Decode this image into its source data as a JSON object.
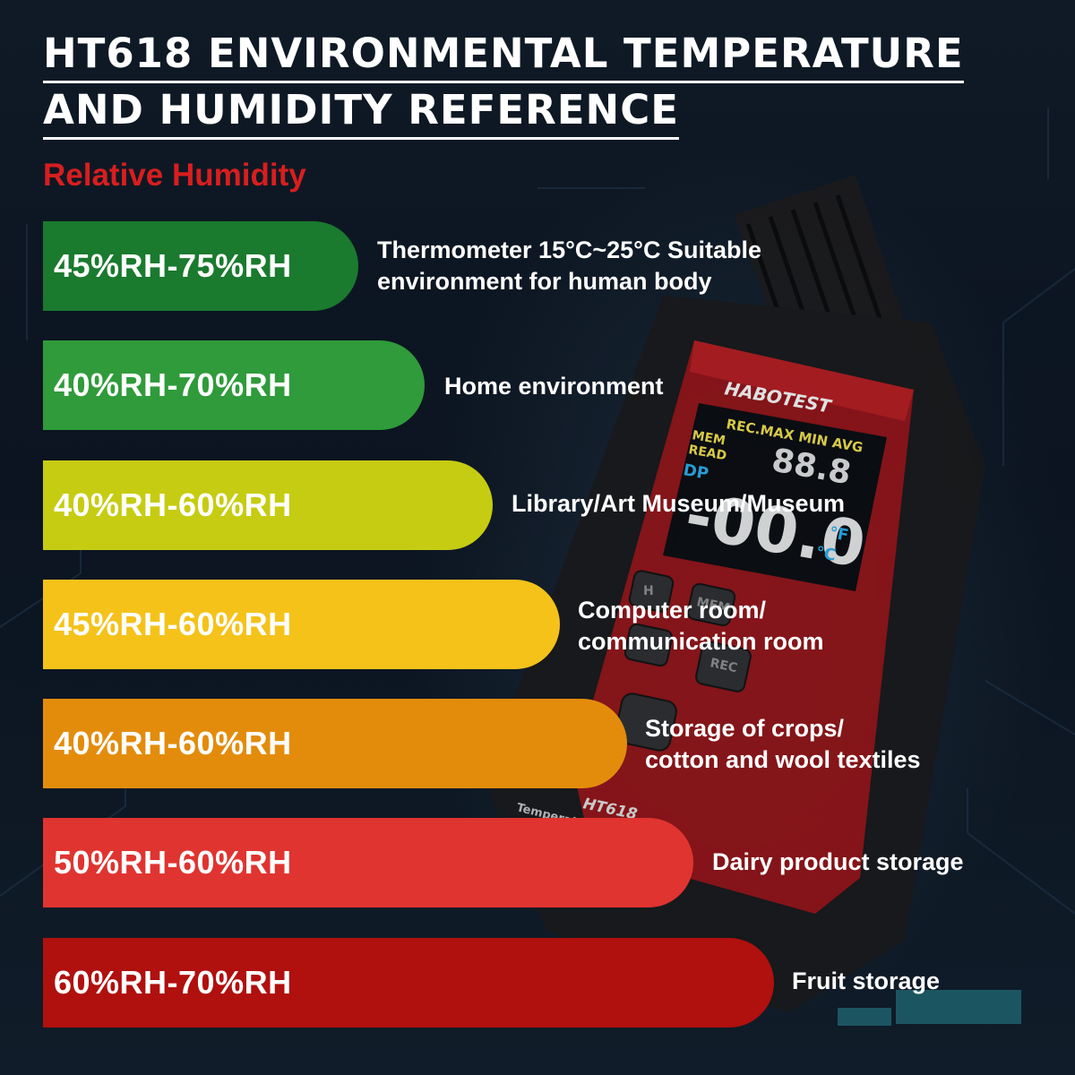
{
  "title_line1": "HT618 ENVIRONMENTAL TEMPERATURE",
  "title_line2": "AND HUMIDITY REFERENCE",
  "subtitle": "Relative Humidity",
  "device": {
    "brand": "HABOTEST",
    "model": "HT618",
    "body_text": "Temperat",
    "screen_top": "REC.MAX MIN AVG",
    "mem": "MEM",
    "read": "READ",
    "dp": "DP",
    "digits_small": "88.8",
    "digits_big": "-00.0",
    "unit_f": "°F",
    "unit_c": "°C",
    "btn_h": "H",
    "btn_mem": "MEM",
    "btn_rec": "REC"
  },
  "rows": [
    {
      "range": "45%RH-75%RH",
      "color": "#1a7a2e",
      "lines": [
        "Thermometer 15°C~25°C Suitable",
        "environment for human body"
      ]
    },
    {
      "range": "40%RH-70%RH",
      "color": "#2f9b3a",
      "lines": [
        "Home environment"
      ]
    },
    {
      "range": "40%RH-60%RH",
      "color": "#c6cc12",
      "lines": [
        "Library/Art Museum/Museum"
      ]
    },
    {
      "range": "45%RH-60%RH",
      "color": "#f5c21a",
      "lines": [
        "Computer room/",
        "communication room"
      ]
    },
    {
      "range": "40%RH-60%RH",
      "color": "#e38c0c",
      "lines": [
        "Storage of crops/",
        "cotton and wool textiles"
      ]
    },
    {
      "range": "50%RH-60%RH",
      "color": "#e03430",
      "lines": [
        "Dairy product storage"
      ]
    },
    {
      "range": "60%RH-70%RH",
      "color": "#b0100e",
      "lines": [
        "Fruit storage"
      ]
    }
  ]
}
